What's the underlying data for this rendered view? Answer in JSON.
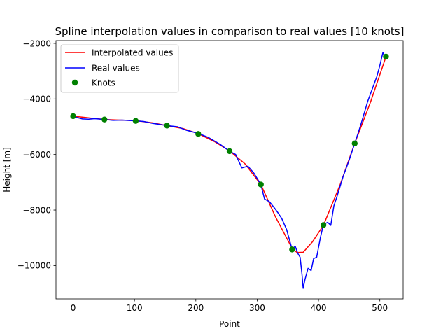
{
  "chart_data": {
    "type": "line",
    "title": "Spline interpolation values in comparison to real values [10 knots]",
    "xlabel": "Point",
    "ylabel": "Height [m]",
    "xlim": [
      -28,
      538
    ],
    "ylim": [
      -11200,
      -1900
    ],
    "xticks": [
      {
        "value": 0,
        "label": "0"
      },
      {
        "value": 100,
        "label": "100"
      },
      {
        "value": 200,
        "label": "200"
      },
      {
        "value": 300,
        "label": "300"
      },
      {
        "value": 400,
        "label": "400"
      },
      {
        "value": 500,
        "label": "500"
      }
    ],
    "yticks": [
      {
        "value": -10000,
        "label": "−10000"
      },
      {
        "value": -8000,
        "label": "−8000"
      },
      {
        "value": -6000,
        "label": "−6000"
      },
      {
        "value": -4000,
        "label": "−4000"
      },
      {
        "value": -2000,
        "label": "−2000"
      }
    ],
    "grid": false,
    "legend_position": "top-left",
    "series": [
      {
        "name": "Interpolated values",
        "kind": "line",
        "color": "#ff0000",
        "x": [
          0,
          25,
          51,
          75,
          102,
          130,
          153,
          180,
          204,
          230,
          255,
          280,
          306,
          330,
          357,
          365,
          375,
          390,
          408,
          435,
          459,
          485,
          510
        ],
        "y": [
          -4620,
          -4680,
          -4740,
          -4760,
          -4780,
          -4860,
          -4960,
          -5070,
          -5250,
          -5530,
          -5870,
          -6330,
          -7080,
          -8250,
          -9380,
          -9530,
          -9520,
          -9150,
          -8550,
          -7100,
          -5600,
          -4100,
          -2480
        ]
      },
      {
        "name": "Real values",
        "kind": "line",
        "color": "#0000ff",
        "x": [
          0,
          5,
          15,
          25,
          35,
          51,
          65,
          80,
          102,
          115,
          130,
          153,
          170,
          185,
          204,
          220,
          240,
          255,
          265,
          275,
          285,
          295,
          306,
          312,
          320,
          328,
          334,
          340,
          348,
          357,
          362,
          366,
          370,
          373,
          375,
          378,
          383,
          388,
          392,
          397,
          403,
          408,
          415,
          420,
          425,
          430,
          440,
          450,
          459,
          465,
          470,
          480,
          490,
          495,
          500,
          505,
          510
        ],
        "y": [
          -4620,
          -4660,
          -4720,
          -4730,
          -4710,
          -4740,
          -4770,
          -4760,
          -4790,
          -4810,
          -4880,
          -4960,
          -5000,
          -5130,
          -5240,
          -5380,
          -5640,
          -5880,
          -6000,
          -6480,
          -6420,
          -6680,
          -7080,
          -7600,
          -7700,
          -7920,
          -8100,
          -8300,
          -8700,
          -9420,
          -9300,
          -9550,
          -9700,
          -10300,
          -10820,
          -10500,
          -10100,
          -10180,
          -9750,
          -9700,
          -9000,
          -8520,
          -8440,
          -8550,
          -7850,
          -7520,
          -6800,
          -6200,
          -5600,
          -5200,
          -4850,
          -4100,
          -3500,
          -3200,
          -2800,
          -2330,
          -2560
        ]
      },
      {
        "name": "Knots",
        "kind": "scatter",
        "color": "#008000",
        "x": [
          0,
          51,
          102,
          153,
          204,
          255,
          306,
          357,
          408,
          459,
          510
        ],
        "y": [
          -4620,
          -4740,
          -4790,
          -4960,
          -5260,
          -5880,
          -7080,
          -9420,
          -8540,
          -5600,
          -2480
        ]
      }
    ]
  }
}
